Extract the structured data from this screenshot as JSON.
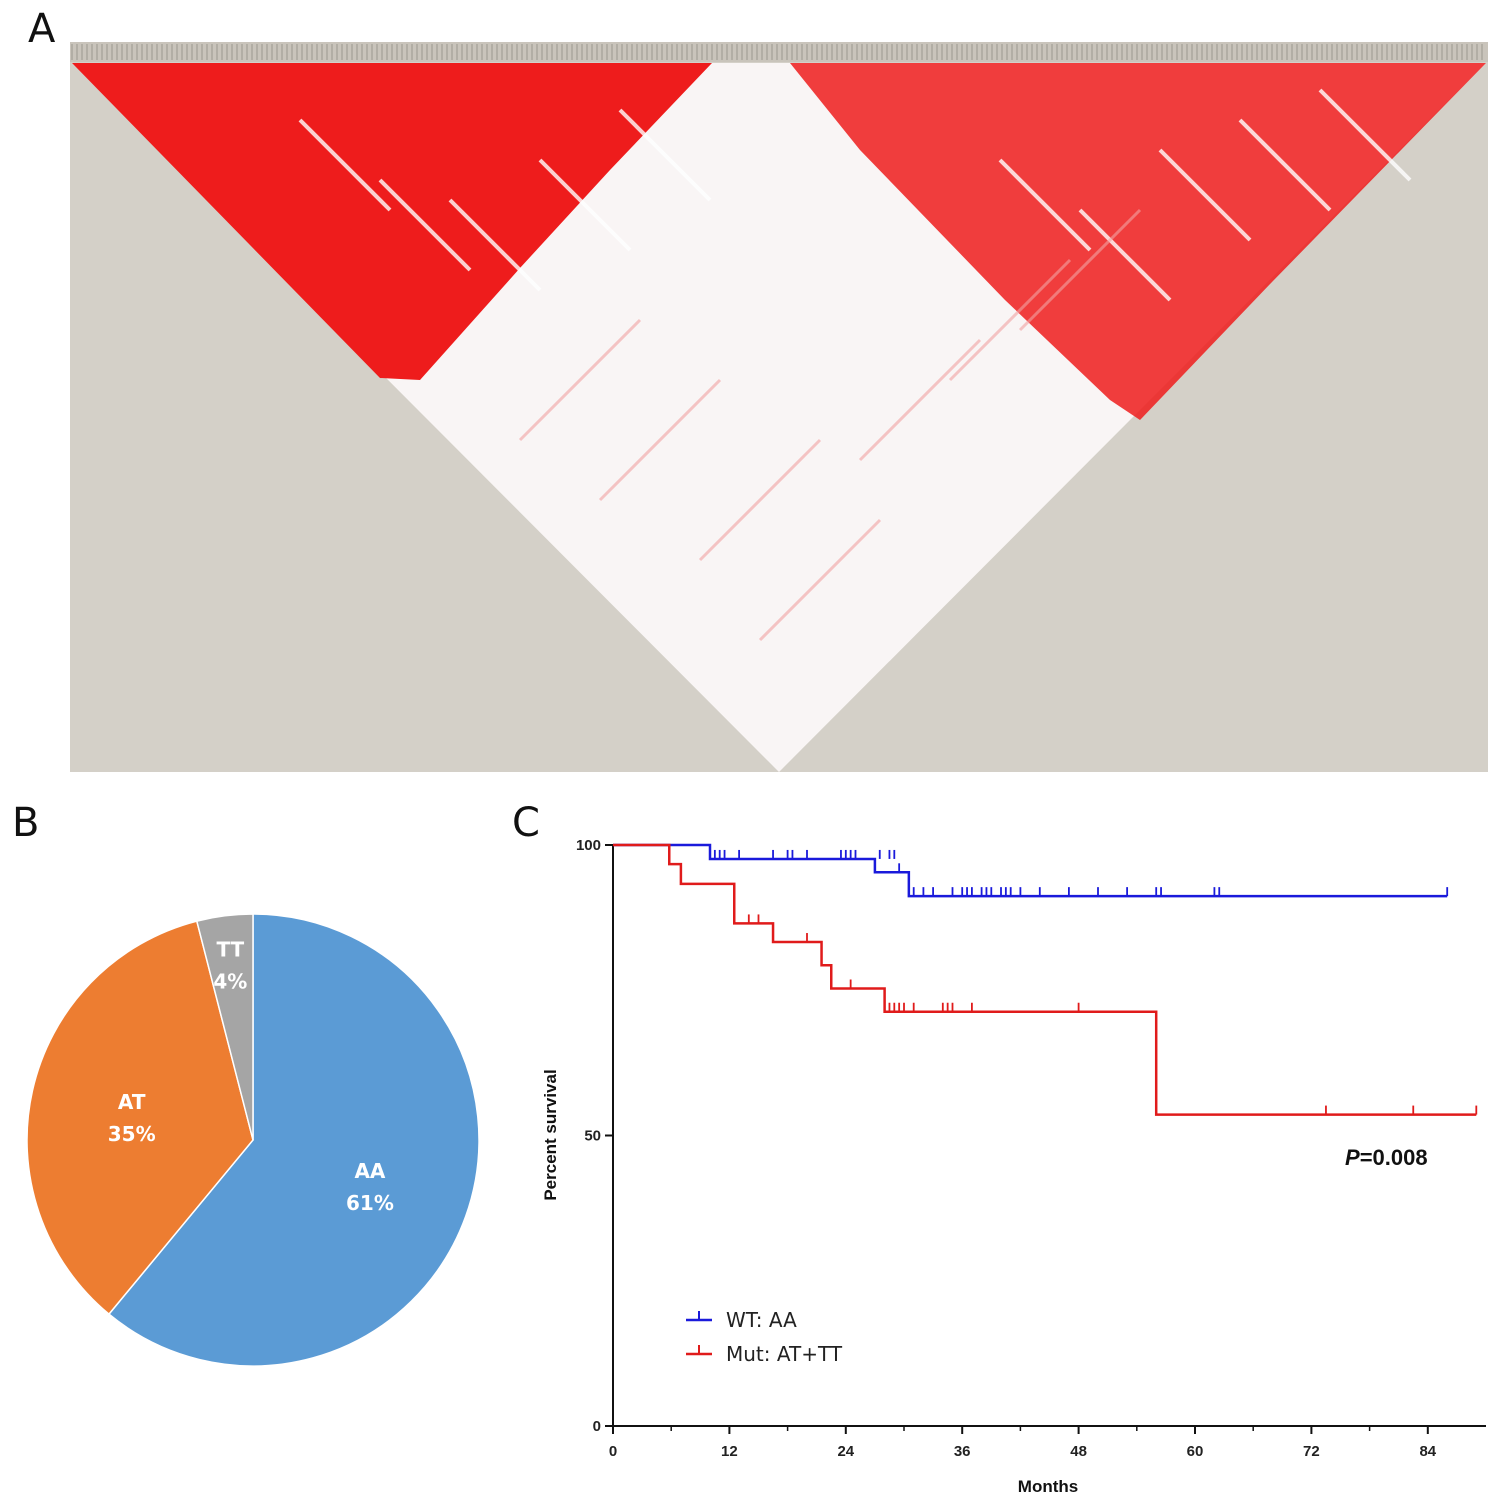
{
  "panels": {
    "a": "A",
    "b": "B",
    "c": "C"
  },
  "colors": {
    "ld_strong": "#ee1c1c",
    "ld_weak": "#f9f5f5",
    "ld_background": "#d4d0c8",
    "blue_line": "#1a1adb",
    "red_line": "#e01b1b",
    "pie_aa": "#5b9bd5",
    "pie_at": "#ed7d31",
    "pie_tt": "#a5a5a5"
  },
  "chart_data": [
    {
      "type": "heatmap",
      "description_kind": "linkage-disequilibrium triangle",
      "title": "",
      "xlabel": "",
      "ylabel": ""
    },
    {
      "type": "pie",
      "title": "",
      "slices": [
        {
          "label": "AA",
          "pct_label": "61%",
          "value": 61
        },
        {
          "label": "AT",
          "pct_label": "35%",
          "value": 35
        },
        {
          "label": "TT",
          "pct_label": "4%",
          "value": 4
        }
      ]
    },
    {
      "type": "line",
      "subtype": "kaplan-meier",
      "title": "",
      "xlabel": "Months",
      "ylabel": "Percent survival",
      "xlim": [
        0,
        90
      ],
      "ylim": [
        0,
        100
      ],
      "xticks": [
        0,
        12,
        24,
        36,
        48,
        60,
        72,
        84
      ],
      "yticks": [
        0,
        50,
        100
      ],
      "annotation": {
        "prefix": "P",
        "text": "=0.008"
      },
      "series": [
        {
          "name": "WT: AA",
          "color": "#1a1adb",
          "steps": [
            [
              0,
              100
            ],
            [
              10,
              100
            ],
            [
              10,
              97.6
            ],
            [
              27,
              97.6
            ],
            [
              27,
              95.3
            ],
            [
              30.5,
              95.3
            ],
            [
              30.5,
              91.2
            ],
            [
              86,
              91.2
            ]
          ],
          "censored": [
            [
              10.5,
              97.6
            ],
            [
              11,
              97.6
            ],
            [
              11.5,
              97.6
            ],
            [
              13,
              97.6
            ],
            [
              16.5,
              97.6
            ],
            [
              18,
              97.6
            ],
            [
              18.5,
              97.6
            ],
            [
              20,
              97.6
            ],
            [
              23.5,
              97.6
            ],
            [
              24,
              97.6
            ],
            [
              24.5,
              97.6
            ],
            [
              25,
              97.6
            ],
            [
              27.5,
              97.6
            ],
            [
              28.5,
              97.6
            ],
            [
              29,
              97.6
            ],
            [
              29.5,
              95.3
            ],
            [
              31,
              91.2
            ],
            [
              32,
              91.2
            ],
            [
              33,
              91.2
            ],
            [
              35,
              91.2
            ],
            [
              36,
              91.2
            ],
            [
              36.5,
              91.2
            ],
            [
              37,
              91.2
            ],
            [
              38,
              91.2
            ],
            [
              38.5,
              91.2
            ],
            [
              39,
              91.2
            ],
            [
              40,
              91.2
            ],
            [
              40.5,
              91.2
            ],
            [
              41,
              91.2
            ],
            [
              42,
              91.2
            ],
            [
              44,
              91.2
            ],
            [
              47,
              91.2
            ],
            [
              50,
              91.2
            ],
            [
              53,
              91.2
            ],
            [
              56,
              91.2
            ],
            [
              56.5,
              91.2
            ],
            [
              62,
              91.2
            ],
            [
              62.5,
              91.2
            ],
            [
              86,
              91.2
            ]
          ]
        },
        {
          "name": "Mut: AT+TT",
          "color": "#e01b1b",
          "steps": [
            [
              0,
              100
            ],
            [
              5.8,
              100
            ],
            [
              5.8,
              96.7
            ],
            [
              7,
              96.7
            ],
            [
              7,
              93.3
            ],
            [
              12.5,
              93.3
            ],
            [
              12.5,
              86.5
            ],
            [
              16.5,
              86.5
            ],
            [
              16.5,
              83.3
            ],
            [
              21.5,
              83.3
            ],
            [
              21.5,
              79.3
            ],
            [
              22.5,
              79.3
            ],
            [
              22.5,
              75.3
            ],
            [
              28,
              75.3
            ],
            [
              28,
              71.3
            ],
            [
              56,
              71.3
            ],
            [
              56,
              53.6
            ],
            [
              89,
              53.6
            ]
          ],
          "censored": [
            [
              14,
              86.5
            ],
            [
              15,
              86.5
            ],
            [
              20,
              83.3
            ],
            [
              24.5,
              75.3
            ],
            [
              28.5,
              71.3
            ],
            [
              29,
              71.3
            ],
            [
              29.5,
              71.3
            ],
            [
              30,
              71.3
            ],
            [
              31,
              71.3
            ],
            [
              34,
              71.3
            ],
            [
              34.5,
              71.3
            ],
            [
              35,
              71.3
            ],
            [
              37,
              71.3
            ],
            [
              48,
              71.3
            ],
            [
              73.5,
              53.6
            ],
            [
              82.5,
              53.6
            ],
            [
              89,
              53.6
            ]
          ]
        }
      ]
    }
  ]
}
